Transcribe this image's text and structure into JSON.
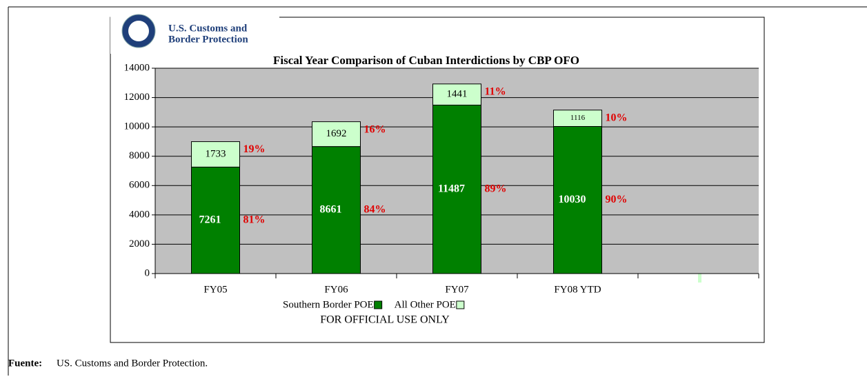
{
  "logo": {
    "line1": "U.S. Customs and",
    "line2": "Border Protection"
  },
  "chart_data": {
    "type": "stacked_bar",
    "title": "Fiscal Year Comparison of Cuban Interdictions by CBP OFO",
    "categories": [
      "FY05",
      "FY06",
      "FY07",
      "FY08 YTD",
      null
    ],
    "series": [
      {
        "name": "Southern Border POE",
        "color": "#008000",
        "values": [
          7261,
          8661,
          11487,
          10030,
          null
        ],
        "share_labels": [
          "81%",
          "84%",
          "89%",
          "90%",
          null
        ]
      },
      {
        "name": "All Other POE",
        "color": "#ccffcc",
        "values": [
          1733,
          1692,
          1441,
          1116,
          null
        ],
        "share_labels": [
          "19%",
          "16%",
          "11%",
          "10%",
          null
        ]
      }
    ],
    "ylim": [
      0,
      14000
    ],
    "yticks": [
      0,
      2000,
      4000,
      6000,
      8000,
      10000,
      12000,
      14000
    ],
    "grid": true,
    "plot_color": "#c0c0c0",
    "footer": "FOR OFFICIAL USE ONLY"
  },
  "source": {
    "label": "Fuente:",
    "text": "US. Customs and Border Protection."
  }
}
